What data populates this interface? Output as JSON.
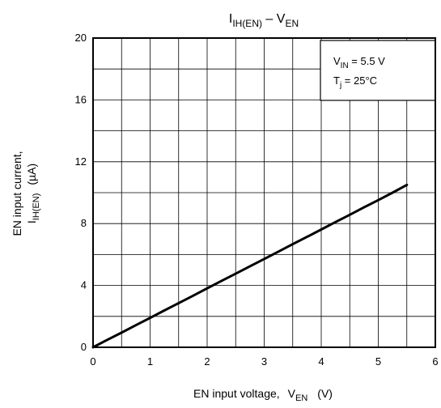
{
  "chart_data": {
    "type": "line",
    "title_parts": {
      "i": "I",
      "i_sub": "IH(EN)",
      "dash": " – ",
      "v": "V",
      "v_sub": "EN"
    },
    "xlabel_parts": {
      "main": "EN input voltage,",
      "v": "V",
      "v_sub": "EN",
      "unit": "(V)"
    },
    "ylabel_parts": {
      "line1": "EN input current,",
      "i": "I",
      "i_sub": "IH(EN)",
      "unit": "(µA)"
    },
    "legend": {
      "line1_main": "V",
      "line1_sub": "IN",
      "line1_rest": " = 5.5 V",
      "line2_main": "T",
      "line2_sub": "j",
      "line2_rest": " = 25°C",
      "position": "top-right"
    },
    "xlim": [
      0,
      6
    ],
    "ylim": [
      0,
      20
    ],
    "x_ticks": [
      0,
      1,
      2,
      3,
      4,
      5,
      6
    ],
    "x_tick_labels": [
      "0",
      "1",
      "2",
      "3",
      "4",
      "5",
      "6"
    ],
    "y_ticks": [
      0,
      4,
      8,
      12,
      16,
      20
    ],
    "y_tick_labels": [
      "0",
      "4",
      "8",
      "12",
      "16",
      "20"
    ],
    "x_minor_grid": [
      0.5,
      1.5,
      2.5,
      3.5,
      4.5,
      5.5
    ],
    "y_minor_grid": [
      2,
      6,
      10,
      14,
      18
    ],
    "grid": true,
    "series": [
      {
        "x": [
          0,
          0.25,
          0.5,
          0.75,
          1,
          1.25,
          1.5,
          1.75,
          2,
          2.25,
          2.5,
          2.75,
          3,
          3.25,
          3.5,
          3.75,
          4,
          4.25,
          4.5,
          4.75,
          5,
          5.25,
          5.5
        ],
        "y": [
          0,
          0.48,
          0.95,
          1.43,
          1.9,
          2.38,
          2.86,
          3.33,
          3.81,
          4.29,
          4.76,
          5.24,
          5.71,
          6.19,
          6.67,
          7.14,
          7.62,
          8.1,
          8.57,
          9.05,
          9.52,
          10.0,
          10.5
        ]
      }
    ]
  }
}
